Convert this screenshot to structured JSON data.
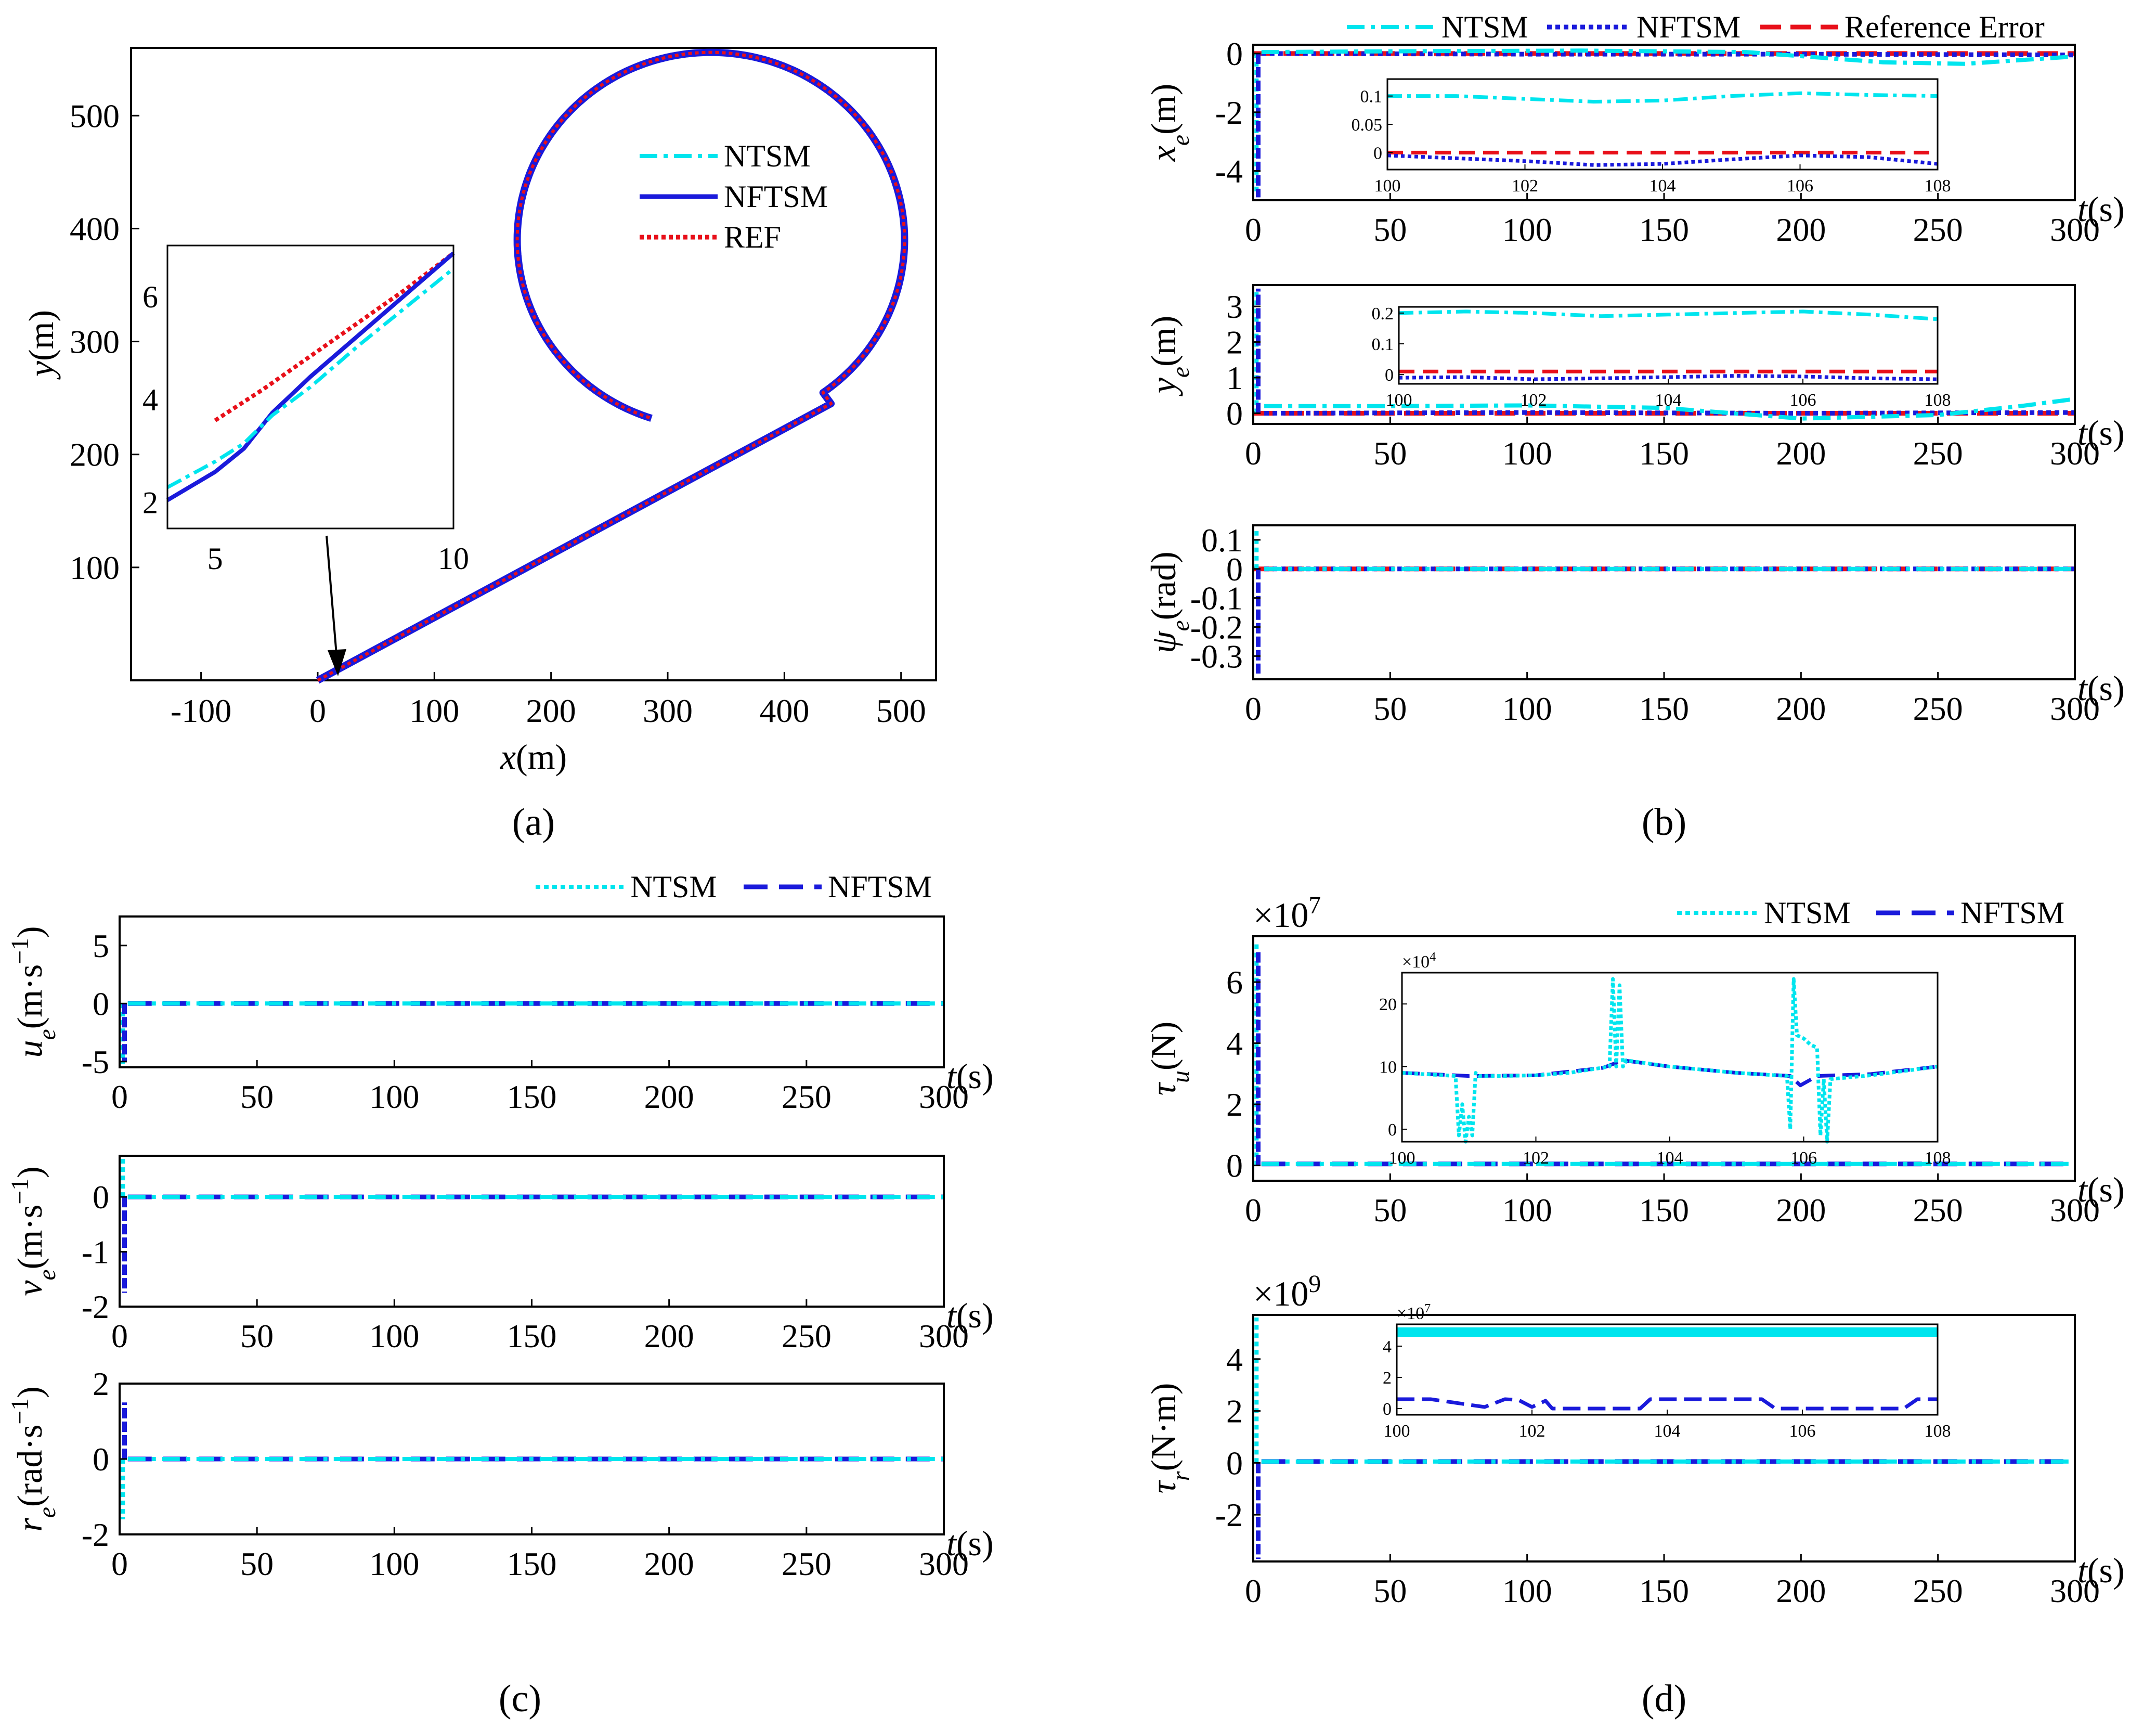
{
  "colors": {
    "ntsm": "#00e5ee",
    "nftsm": "#1a1adb",
    "ref": "#e8101a",
    "axis": "#000000"
  },
  "chart_data": [
    {
      "type": "line",
      "id": "a",
      "caption": "(a)",
      "xlabel": "x(m)",
      "ylabel": "y(m)",
      "xlim": [
        -160,
        530
      ],
      "ylim": [
        0,
        560
      ],
      "xticks": [
        -100,
        0,
        100,
        200,
        300,
        400,
        500
      ],
      "yticks": [
        100,
        200,
        300,
        400,
        500
      ],
      "legend": [
        "NTSM",
        "NFTSM",
        "REF"
      ],
      "path": {
        "line_start": [
          0,
          0
        ],
        "line_end": [
          440,
          245
        ],
        "circle_center": [
          337,
          390
        ],
        "circle_radius": 166,
        "end_point": [
          287,
          235
        ]
      },
      "inset": {
        "xlim": [
          4,
          10
        ],
        "ylim": [
          1.5,
          7
        ],
        "xticks": [
          5,
          10
        ],
        "yticks": [
          2,
          4,
          6
        ],
        "ntsm": {
          "x": [
            4,
            5,
            5.6,
            6.2,
            7,
            8,
            9,
            10
          ],
          "y": [
            2.3,
            2.8,
            3.15,
            3.7,
            4.25,
            5.05,
            5.8,
            6.55
          ]
        },
        "nftsm": {
          "x": [
            4,
            5,
            5.6,
            6.2,
            7,
            8,
            9,
            10
          ],
          "y": [
            2.05,
            2.6,
            3.05,
            3.75,
            4.45,
            5.25,
            6.05,
            6.85
          ]
        },
        "ref": {
          "x": [
            5,
            6,
            7,
            8,
            9,
            10
          ],
          "y": [
            3.6,
            4.2,
            4.85,
            5.5,
            6.15,
            6.85
          ]
        }
      }
    },
    {
      "type": "line",
      "id": "b",
      "caption": "(b)",
      "legend": [
        "NTSM",
        "NFTSM",
        "Reference Error"
      ],
      "xlabel": "t(s)",
      "xlim": [
        0,
        300
      ],
      "xticks": [
        0,
        50,
        100,
        150,
        200,
        250,
        300
      ],
      "subplots": [
        {
          "ylabel": "xe(m)",
          "ylim": [
            -5,
            0.3
          ],
          "yticks": [
            0,
            -2,
            -4
          ],
          "transient": {
            "ntsm": -4.8,
            "nftsm": -4.9
          },
          "ntsm": {
            "t": [
              3,
              60,
              120,
              180,
              230,
              260,
              300
            ],
            "v": [
              0.05,
              0.08,
              0.1,
              0.05,
              -0.3,
              -0.35,
              -0.1
            ]
          },
          "nftsm": {
            "t": [
              3,
              100,
              200,
              300
            ],
            "v": [
              0.0,
              -0.02,
              -0.02,
              -0.05
            ]
          },
          "ref": {
            "t": [
              0,
              300
            ],
            "v": [
              0,
              0
            ]
          },
          "inset": {
            "xlim": [
              100,
              108
            ],
            "ylim": [
              -0.03,
              0.13
            ],
            "xticks": [
              100,
              102,
              104,
              106,
              108
            ],
            "yticks": [
              0.1,
              0.05,
              0
            ],
            "ytick_labels": [
              "0.1",
              "0.05",
              "0"
            ],
            "ntsm": {
              "t": [
                100,
                101,
                102,
                103,
                104,
                105,
                106,
                107,
                108
              ],
              "v": [
                0.1,
                0.1,
                0.095,
                0.09,
                0.092,
                0.1,
                0.105,
                0.102,
                0.1
              ]
            },
            "nftsm": {
              "t": [
                100,
                101,
                102,
                103,
                104,
                105,
                106,
                107,
                108
              ],
              "v": [
                -0.005,
                -0.01,
                -0.015,
                -0.022,
                -0.02,
                -0.012,
                -0.005,
                -0.008,
                -0.02
              ]
            },
            "ref": {
              "t": [
                100,
                108
              ],
              "v": [
                0,
                0
              ]
            }
          }
        },
        {
          "ylabel": "ye(m)",
          "ylim": [
            -0.3,
            3.6
          ],
          "yticks": [
            0,
            1,
            2,
            3
          ],
          "transient": {
            "ntsm": 3.4,
            "nftsm": 3.5
          },
          "ntsm": {
            "t": [
              4,
              50,
              100,
              150,
              200,
              250,
              280,
              300
            ],
            "v": [
              0.2,
              0.2,
              0.22,
              0.15,
              -0.15,
              -0.05,
              0.2,
              0.4
            ]
          },
          "nftsm": {
            "t": [
              4,
              100,
              200,
              300
            ],
            "v": [
              0.0,
              0.02,
              0.0,
              0.02
            ]
          },
          "ref": {
            "t": [
              0,
              300
            ],
            "v": [
              0,
              0
            ]
          },
          "inset": {
            "xlim": [
              100,
              108
            ],
            "ylim": [
              -0.03,
              0.22
            ],
            "xticks": [
              100,
              102,
              104,
              106,
              108
            ],
            "yticks": [
              0.2,
              0.1,
              0
            ],
            "ytick_labels": [
              "0.2",
              "0.1",
              "0"
            ],
            "ntsm": {
              "t": [
                100,
                101,
                102,
                103,
                104,
                105,
                106,
                107,
                108
              ],
              "v": [
                0.2,
                0.205,
                0.2,
                0.19,
                0.195,
                0.2,
                0.205,
                0.195,
                0.18
              ]
            },
            "nftsm": {
              "t": [
                100,
                101,
                102,
                103,
                104,
                105,
                106,
                107,
                108
              ],
              "v": [
                -0.01,
                -0.008,
                -0.015,
                -0.012,
                -0.008,
                -0.004,
                -0.006,
                -0.012,
                -0.015
              ]
            },
            "ref": {
              "t": [
                100,
                108
              ],
              "v": [
                0.01,
                0.01
              ]
            }
          }
        },
        {
          "ylabel": "ψe(rad)",
          "ylim": [
            -0.38,
            0.15
          ],
          "yticks": [
            0.1,
            0,
            -0.1,
            -0.2,
            -0.3
          ],
          "ytick_labels": [
            "0.1",
            "0",
            "-0.1",
            "-0.2",
            "-0.3"
          ],
          "transient": {
            "ntsm": 0.13,
            "nftsm": -0.36
          },
          "ntsm": {
            "t": [
              4,
              300
            ],
            "v": [
              0,
              0
            ]
          },
          "nftsm": {
            "t": [
              4,
              300
            ],
            "v": [
              0,
              0
            ]
          },
          "ref": {
            "t": [
              0,
              300
            ],
            "v": [
              0,
              0
            ]
          }
        }
      ]
    },
    {
      "type": "line",
      "id": "c",
      "caption": "(c)",
      "legend": [
        "NTSM",
        "NFTSM"
      ],
      "xlabel": "t(s)",
      "xlim": [
        0,
        300
      ],
      "xticks": [
        0,
        50,
        100,
        150,
        200,
        250,
        300
      ],
      "subplots": [
        {
          "ylabel": "ue(m·s−1)",
          "ylim": [
            -5.5,
            7.5
          ],
          "yticks": [
            5,
            0,
            -5
          ],
          "ytick_labels": [
            "5",
            "0",
            "-5"
          ],
          "transient": {
            "ntsm": -5.2,
            "nftsm": -5.0
          },
          "ntsm": {
            "t": [
              3,
              300
            ],
            "v": [
              0,
              0
            ]
          },
          "nftsm": {
            "t": [
              3,
              300
            ],
            "v": [
              0,
              0
            ]
          }
        },
        {
          "ylabel": "ve(m·s−1)",
          "ylim": [
            -2,
            0.75
          ],
          "yticks": [
            0,
            -1,
            -2
          ],
          "ytick_labels": [
            "0",
            "-1",
            "-2"
          ],
          "transient": {
            "ntsm": 0.7,
            "nftsm": -1.75
          },
          "ntsm": {
            "t": [
              3,
              300
            ],
            "v": [
              0,
              0
            ]
          },
          "nftsm": {
            "t": [
              3,
              300
            ],
            "v": [
              0,
              0
            ]
          }
        },
        {
          "ylabel": "re(rad·s−1)",
          "ylim": [
            -2,
            2
          ],
          "yticks": [
            2,
            0,
            -2
          ],
          "ytick_labels": [
            "2",
            "0",
            "-2"
          ],
          "transient": {
            "ntsm": -1.6,
            "nftsm": 1.5
          },
          "ntsm": {
            "t": [
              3,
              300
            ],
            "v": [
              0,
              0
            ]
          },
          "nftsm": {
            "t": [
              3,
              300
            ],
            "v": [
              0,
              0
            ]
          }
        }
      ]
    },
    {
      "type": "line",
      "id": "d",
      "caption": "(d)",
      "legend": [
        "NTSM",
        "NFTSM"
      ],
      "xlabel": "t(s)",
      "xlim": [
        0,
        300
      ],
      "xticks": [
        0,
        50,
        100,
        150,
        200,
        250,
        300
      ],
      "subplots": [
        {
          "ylabel": "τu(N)",
          "ylim": [
            -0.5,
            7.5
          ],
          "yticks": [
            6,
            4,
            2,
            0
          ],
          "ytick_labels": [
            "6",
            "4",
            "2",
            "0"
          ],
          "exponent": "×107",
          "transient": {
            "ntsm": 7.3,
            "nftsm": 7.0
          },
          "ntsm": {
            "t": [
              3,
              300
            ],
            "v": [
              0.05,
              0.05
            ]
          },
          "nftsm": {
            "t": [
              3,
              300
            ],
            "v": [
              0.05,
              0.05
            ]
          },
          "inset": {
            "xlim": [
              100,
              108
            ],
            "ylim": [
              -2,
              25
            ],
            "xticks": [
              100,
              102,
              104,
              106,
              108
            ],
            "yticks": [
              20,
              10,
              0
            ],
            "ytick_labels": [
              "20",
              "10",
              "0"
            ],
            "exponent": "×104",
            "ntsm": {
              "t": [
                100,
                100.8,
                100.85,
                100.9,
                100.95,
                101.0,
                101.05,
                101.1,
                101.15,
                101.5,
                102,
                102.5,
                103.1,
                103.15,
                103.2,
                103.25,
                103.3,
                103.35,
                104,
                105,
                105.75,
                105.8,
                105.85,
                105.9,
                106.0,
                106.1,
                106.2,
                106.25,
                106.3,
                106.35,
                106.4,
                107,
                108
              ],
              "v": [
                9,
                8.5,
                -1,
                4,
                -2,
                2,
                -1,
                9,
                8.5,
                8.5,
                8.6,
                9,
                10,
                24,
                10,
                23,
                10,
                11,
                10,
                9,
                8.5,
                0,
                24,
                15,
                14.5,
                13.5,
                13,
                -1,
                8,
                -2,
                8,
                8.6,
                10
              ]
            },
            "nftsm": {
              "t": [
                100,
                101,
                102,
                103,
                103.3,
                104,
                105,
                105.8,
                105.95,
                106.2,
                107,
                108
              ],
              "v": [
                9,
                8.5,
                8.6,
                9.8,
                11,
                10,
                9,
                8.5,
                7,
                8.5,
                8.8,
                10
              ]
            }
          }
        },
        {
          "ylabel": "τr(N·m)",
          "ylim": [
            -3.8,
            5.7
          ],
          "yticks": [
            4,
            2,
            0,
            -2
          ],
          "ytick_labels": [
            "4",
            "2",
            "0",
            "-2"
          ],
          "exponent": "×109",
          "transient": {
            "ntsm": 5.6,
            "nftsm": -3.7
          },
          "ntsm": {
            "t": [
              3,
              300
            ],
            "v": [
              0.05,
              0.05
            ]
          },
          "nftsm": {
            "t": [
              3,
              300
            ],
            "v": [
              0.05,
              0.05
            ]
          },
          "inset": {
            "xlim": [
              100,
              108
            ],
            "ylim": [
              -0.4,
              5.4
            ],
            "xticks": [
              100,
              102,
              104,
              106,
              108
            ],
            "yticks": [
              4,
              2,
              0
            ],
            "ytick_labels": [
              "4",
              "2",
              "0"
            ],
            "exponent": "×107",
            "ntsm_band": [
              4.6,
              5.2
            ],
            "nftsm": {
              "t": [
                100,
                100.5,
                101.3,
                101.6,
                101.8,
                102.0,
                102.2,
                102.3,
                102.6,
                103.2,
                103.6,
                103.75,
                104.0,
                104.2,
                105.4,
                105.6,
                106.0,
                107.0,
                107.5,
                107.7,
                108
              ],
              "v": [
                0.6,
                0.6,
                0.1,
                0.6,
                0.55,
                0.1,
                0.5,
                0.0,
                0.0,
                0.0,
                0.0,
                0.6,
                0.6,
                0.6,
                0.6,
                0.0,
                0.0,
                0.0,
                0.0,
                0.6,
                0.6
              ]
            }
          }
        }
      ]
    }
  ]
}
